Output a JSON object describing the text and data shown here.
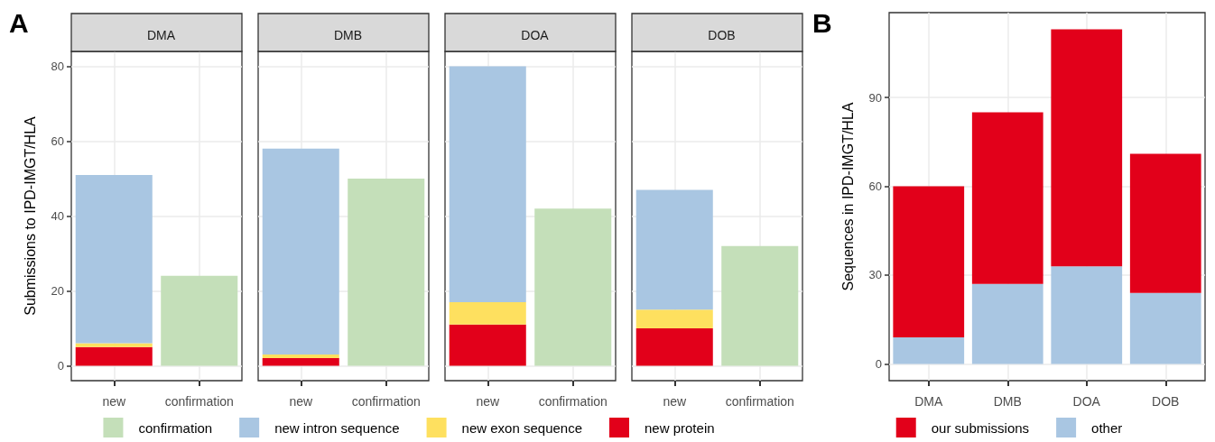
{
  "chart_data": [
    {
      "type": "bar",
      "title": "DMA",
      "annotations": [
        "A"
      ],
      "ylabel": "Submissions to IPD-IMGT/HLA",
      "categories": [
        "new",
        "confirmation"
      ],
      "stacked": true,
      "ylim": [
        -4,
        84
      ],
      "yticks": [
        0,
        20,
        40,
        60,
        80
      ],
      "grid": true,
      "legend": "bottom",
      "series": [
        {
          "name": "new protein",
          "color": "#e2001a",
          "values": [
            5,
            null
          ]
        },
        {
          "name": "new exon sequence",
          "color": "#fee05f",
          "values": [
            1,
            null
          ]
        },
        {
          "name": "new intron sequence",
          "color": "#a9c6e2",
          "values": [
            45,
            null
          ]
        },
        {
          "name": "confirmation",
          "color": "#c4dfb9",
          "values": [
            null,
            24
          ]
        }
      ]
    },
    {
      "type": "bar",
      "title": "DMB",
      "categories": [
        "new",
        "confirmation"
      ],
      "stacked": true,
      "ylim": [
        -4,
        84
      ],
      "yticks": [
        0,
        20,
        40,
        60,
        80
      ],
      "grid": true,
      "tick_labels": "x",
      "series": [
        {
          "color": "#e2001a",
          "values": [
            2,
            null
          ]
        },
        {
          "color": "#fee05f",
          "values": [
            1,
            null
          ]
        },
        {
          "color": "#a9c6e2",
          "values": [
            55,
            null
          ]
        },
        {
          "color": "#c4dfb9",
          "values": [
            null,
            50
          ]
        }
      ]
    },
    {
      "type": "bar",
      "title": "DOA",
      "categories": [
        "new",
        "confirmation"
      ],
      "stacked": true,
      "ylim": [
        -4,
        84
      ],
      "yticks": [
        0,
        20,
        40,
        60,
        80
      ],
      "grid": true,
      "tick_labels": "x",
      "series": [
        {
          "color": "#e2001a",
          "values": [
            11,
            null
          ]
        },
        {
          "color": "#fee05f",
          "values": [
            6,
            null
          ]
        },
        {
          "color": "#a9c6e2",
          "values": [
            63,
            null
          ]
        },
        {
          "color": "#c4dfb9",
          "values": [
            null,
            42
          ]
        }
      ]
    },
    {
      "type": "bar",
      "title": "DOB",
      "categories": [
        "new",
        "confirmation"
      ],
      "stacked": true,
      "ylim": [
        -4,
        84
      ],
      "yticks": [
        0,
        20,
        40,
        60,
        80
      ],
      "grid": true,
      "tick_labels": "x",
      "series": [
        {
          "color": "#e2001a",
          "values": [
            10,
            null
          ]
        },
        {
          "color": "#fee05f",
          "values": [
            5,
            null
          ]
        },
        {
          "color": "#a9c6e2",
          "values": [
            32,
            null
          ]
        },
        {
          "color": "#c4dfb9",
          "values": [
            null,
            32
          ]
        }
      ]
    },
    {
      "type": "bar",
      "annotations": [
        "B"
      ],
      "ylabel": "Sequences in IPD-IMGT/HLA",
      "categories": [
        "DMA",
        "DMB",
        "DOA",
        "DOB"
      ],
      "stacked": true,
      "ylim": [
        -5.65,
        118.65
      ],
      "yticks": [
        0,
        30,
        60,
        90
      ],
      "grid": true,
      "legend": "bottom",
      "series": [
        {
          "name": "other",
          "color": "#a9c6e2",
          "values": [
            9,
            27,
            33,
            24
          ]
        },
        {
          "name": "our submissions",
          "color": "#e2001a",
          "values": [
            51,
            58,
            80,
            47
          ]
        }
      ]
    }
  ]
}
